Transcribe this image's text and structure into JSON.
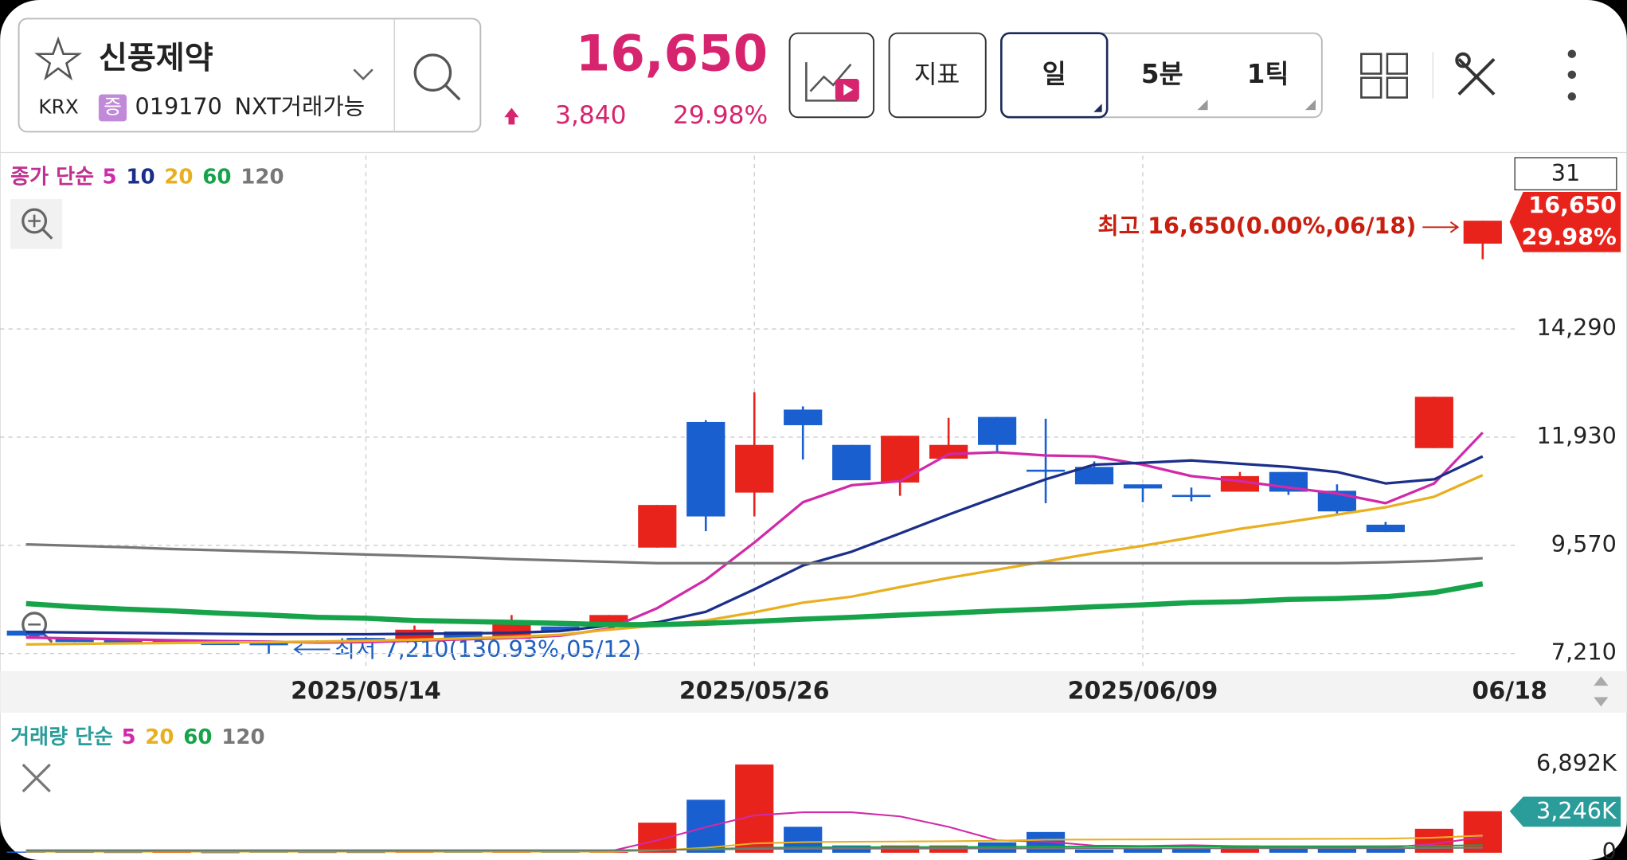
{
  "header": {
    "stock_name": "신풍제약",
    "market": "KRX",
    "badge": "증",
    "code": "019170",
    "nxt": "NXT거래가능",
    "price": "16,650",
    "change": "3,840",
    "change_rate": "29.98%",
    "buttons": [
      "지표",
      "일",
      "5분",
      "1틱"
    ]
  },
  "chart_data": [
    {
      "type": "candlestick",
      "legend_title": "종가 단순",
      "bar_count": "31",
      "categories": [
        null,
        null,
        null,
        null,
        null,
        null,
        null,
        "2025/05/14",
        null,
        null,
        null,
        null,
        null,
        null,
        null,
        "2025/05/26",
        null,
        null,
        null,
        null,
        null,
        null,
        null,
        "2025/06/09",
        null,
        null,
        null,
        null,
        null,
        null,
        "06/18"
      ],
      "open": [
        7710,
        7530,
        7500,
        7440,
        7440,
        7440,
        7480,
        7550,
        7530,
        7690,
        7530,
        7800,
        7890,
        9520,
        12260,
        10720,
        12530,
        11760,
        10940,
        11460,
        12370,
        11220,
        11280,
        10900,
        10670,
        10740,
        11170,
        10760,
        10020,
        11690,
        16150
      ],
      "high": [
        7710,
        7530,
        7500,
        7500,
        7460,
        7440,
        7500,
        7560,
        7820,
        7690,
        8050,
        7800,
        8050,
        10450,
        12300,
        12910,
        12600,
        11760,
        11960,
        12350,
        12370,
        12330,
        11400,
        10900,
        10830,
        11170,
        11170,
        10900,
        10080,
        12810,
        16650
      ],
      "low": [
        7590,
        7460,
        7440,
        7440,
        7420,
        7210,
        7460,
        7530,
        7530,
        7500,
        7530,
        7710,
        7890,
        9520,
        9880,
        10200,
        11440,
        10990,
        10650,
        11460,
        11600,
        10490,
        10900,
        10510,
        10530,
        10740,
        10670,
        10220,
        9860,
        11690,
        15810
      ],
      "close": [
        7600,
        7460,
        7440,
        7500,
        7440,
        7390,
        7480,
        7550,
        7730,
        7500,
        7890,
        7710,
        8050,
        10450,
        10200,
        11760,
        12190,
        10990,
        11960,
        11760,
        11760,
        11220,
        10900,
        10810,
        10630,
        11080,
        10740,
        10310,
        9860,
        12810,
        16650
      ],
      "up_color": "#e8231b",
      "down_color": "#1a5fcf",
      "series": [
        {
          "name": "5",
          "color": "#d02aa8",
          "values": [
            7560,
            7540,
            7520,
            7500,
            7480,
            7470,
            7450,
            7460,
            7490,
            7520,
            7550,
            7600,
            7750,
            8200,
            8820,
            9630,
            10510,
            10880,
            10970,
            11560,
            11600,
            11530,
            11510,
            11330,
            11080,
            10970,
            10830,
            10700,
            10490,
            10920,
            12030
          ]
        },
        {
          "name": "10",
          "color": "#1a2f8a",
          "values": [
            7680,
            7670,
            7660,
            7650,
            7640,
            7630,
            7630,
            7630,
            7640,
            7650,
            7660,
            7700,
            7820,
            7890,
            8120,
            8610,
            9130,
            9430,
            9830,
            10240,
            10630,
            11010,
            11330,
            11370,
            11420,
            11350,
            11280,
            11170,
            10920,
            11010,
            11510
          ]
        },
        {
          "name": "20",
          "color": "#e8b020",
          "values": [
            7410,
            7420,
            7430,
            7440,
            7450,
            7460,
            7470,
            7490,
            7510,
            7540,
            7570,
            7620,
            7730,
            7820,
            7930,
            8110,
            8320,
            8450,
            8660,
            8860,
            9040,
            9220,
            9400,
            9560,
            9740,
            9930,
            10080,
            10240,
            10400,
            10630,
            11100
          ]
        },
        {
          "name": "60",
          "color": "#16a34a",
          "values": [
            8300,
            8230,
            8180,
            8140,
            8090,
            8050,
            8000,
            7980,
            7930,
            7910,
            7890,
            7870,
            7840,
            7840,
            7870,
            7910,
            7960,
            8000,
            8050,
            8090,
            8140,
            8180,
            8230,
            8270,
            8320,
            8340,
            8390,
            8410,
            8450,
            8540,
            8730
          ]
        },
        {
          "name": "120",
          "color": "#777777",
          "values": [
            9590,
            9560,
            9530,
            9490,
            9460,
            9430,
            9400,
            9370,
            9340,
            9310,
            9270,
            9240,
            9210,
            9180,
            9180,
            9180,
            9180,
            9180,
            9180,
            9180,
            9180,
            9180,
            9180,
            9180,
            9180,
            9180,
            9180,
            9180,
            9200,
            9230,
            9290
          ]
        }
      ],
      "ylim": [
        6870,
        18070
      ],
      "yticks": [
        {
          "value": 7210,
          "label": "7,210"
        },
        {
          "value": 9570,
          "label": "9,570"
        },
        {
          "value": 11930,
          "label": "11,930"
        },
        {
          "value": 14290,
          "label": "14,290"
        }
      ],
      "price_tag": "16,650",
      "price_tag_rate": "29.98%",
      "high_note": "최고 16,650(0.00%,06/18)",
      "low_note": "최저 7,210(130.93%,05/12)",
      "grid": true
    },
    {
      "type": "bar",
      "legend_title": "거래량 단순",
      "values": [
        90,
        70,
        60,
        70,
        50,
        110,
        60,
        60,
        120,
        90,
        160,
        80,
        150,
        2350,
        4140,
        6892,
        2030,
        570,
        570,
        570,
        810,
        1620,
        240,
        400,
        320,
        570,
        400,
        320,
        320,
        1870,
        3246
      ],
      "last_label": "3,246K",
      "series": [
        {
          "name": "5",
          "color": "#d02aa8",
          "values": [
            90,
            90,
            90,
            90,
            90,
            90,
            90,
            90,
            90,
            90,
            90,
            90,
            90,
            970,
            2000,
            2920,
            3160,
            3160,
            2840,
            2020,
            970,
            870,
            560,
            530,
            590,
            510,
            390,
            400,
            390,
            690,
            1230
          ]
        },
        {
          "name": "20",
          "color": "#e8b020",
          "values": [
            80,
            80,
            80,
            80,
            80,
            80,
            80,
            80,
            80,
            80,
            80,
            80,
            80,
            190,
            390,
            730,
            830,
            860,
            880,
            900,
            940,
            1020,
            1030,
            1040,
            1050,
            1070,
            1080,
            1090,
            1100,
            1180,
            1340
          ]
        },
        {
          "name": "60",
          "color": "#16a34a",
          "values": [
            150,
            150,
            150,
            150,
            150,
            150,
            150,
            150,
            150,
            160,
            160,
            160,
            170,
            210,
            280,
            390,
            420,
            430,
            440,
            450,
            460,
            480,
            480,
            490,
            490,
            500,
            500,
            500,
            510,
            540,
            590
          ]
        },
        {
          "name": "120",
          "color": "#777777",
          "values": [
            200,
            200,
            200,
            200,
            200,
            200,
            200,
            200,
            200,
            200,
            200,
            200,
            200,
            220,
            250,
            300,
            310,
            320,
            320,
            330,
            330,
            340,
            340,
            340,
            340,
            350,
            350,
            350,
            350,
            370,
            390
          ]
        }
      ],
      "ylim": [
        0,
        10700
      ],
      "yticks": [
        0,
        {
          "value": 6892,
          "label": "6,892K"
        }
      ]
    }
  ]
}
